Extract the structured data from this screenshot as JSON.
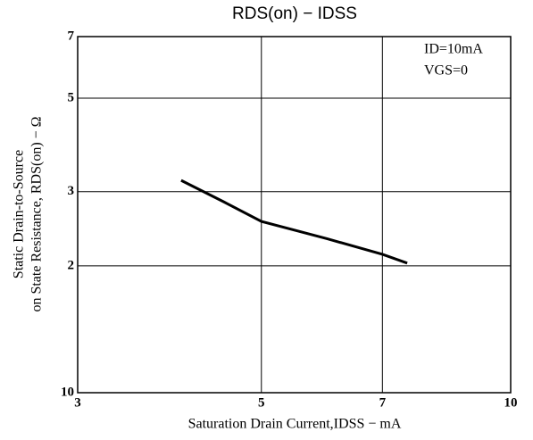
{
  "chart_data": {
    "type": "line",
    "title": "RDS(on) − IDSS",
    "xlabel": "Saturation Drain Current,IDSS − mA",
    "ylabel": [
      "Static Drain-to-Source",
      "on State Resistance, RDS(on) − Ω"
    ],
    "annotations": [
      "ID=10mA",
      "VGS=0"
    ],
    "x": [
      4.0,
      4.5,
      5,
      6,
      7,
      7.5
    ],
    "series": [
      {
        "name": "RDS(on)",
        "color": "#000000",
        "values": [
          31.9,
          28.4,
          25.5,
          23.2,
          21.3,
          20.3
        ]
      }
    ],
    "xlim": [
      3,
      10
    ],
    "xticks": [
      3,
      5,
      7,
      10
    ],
    "ylim": [
      10,
      70
    ],
    "yticks": [
      10,
      {
        "value": 20,
        "label": "2"
      },
      {
        "value": 30,
        "label": "3"
      },
      {
        "value": 50,
        "label": "5"
      },
      {
        "value": 70,
        "label": "7"
      }
    ],
    "log_x": true,
    "log_y": true,
    "grid": true
  }
}
